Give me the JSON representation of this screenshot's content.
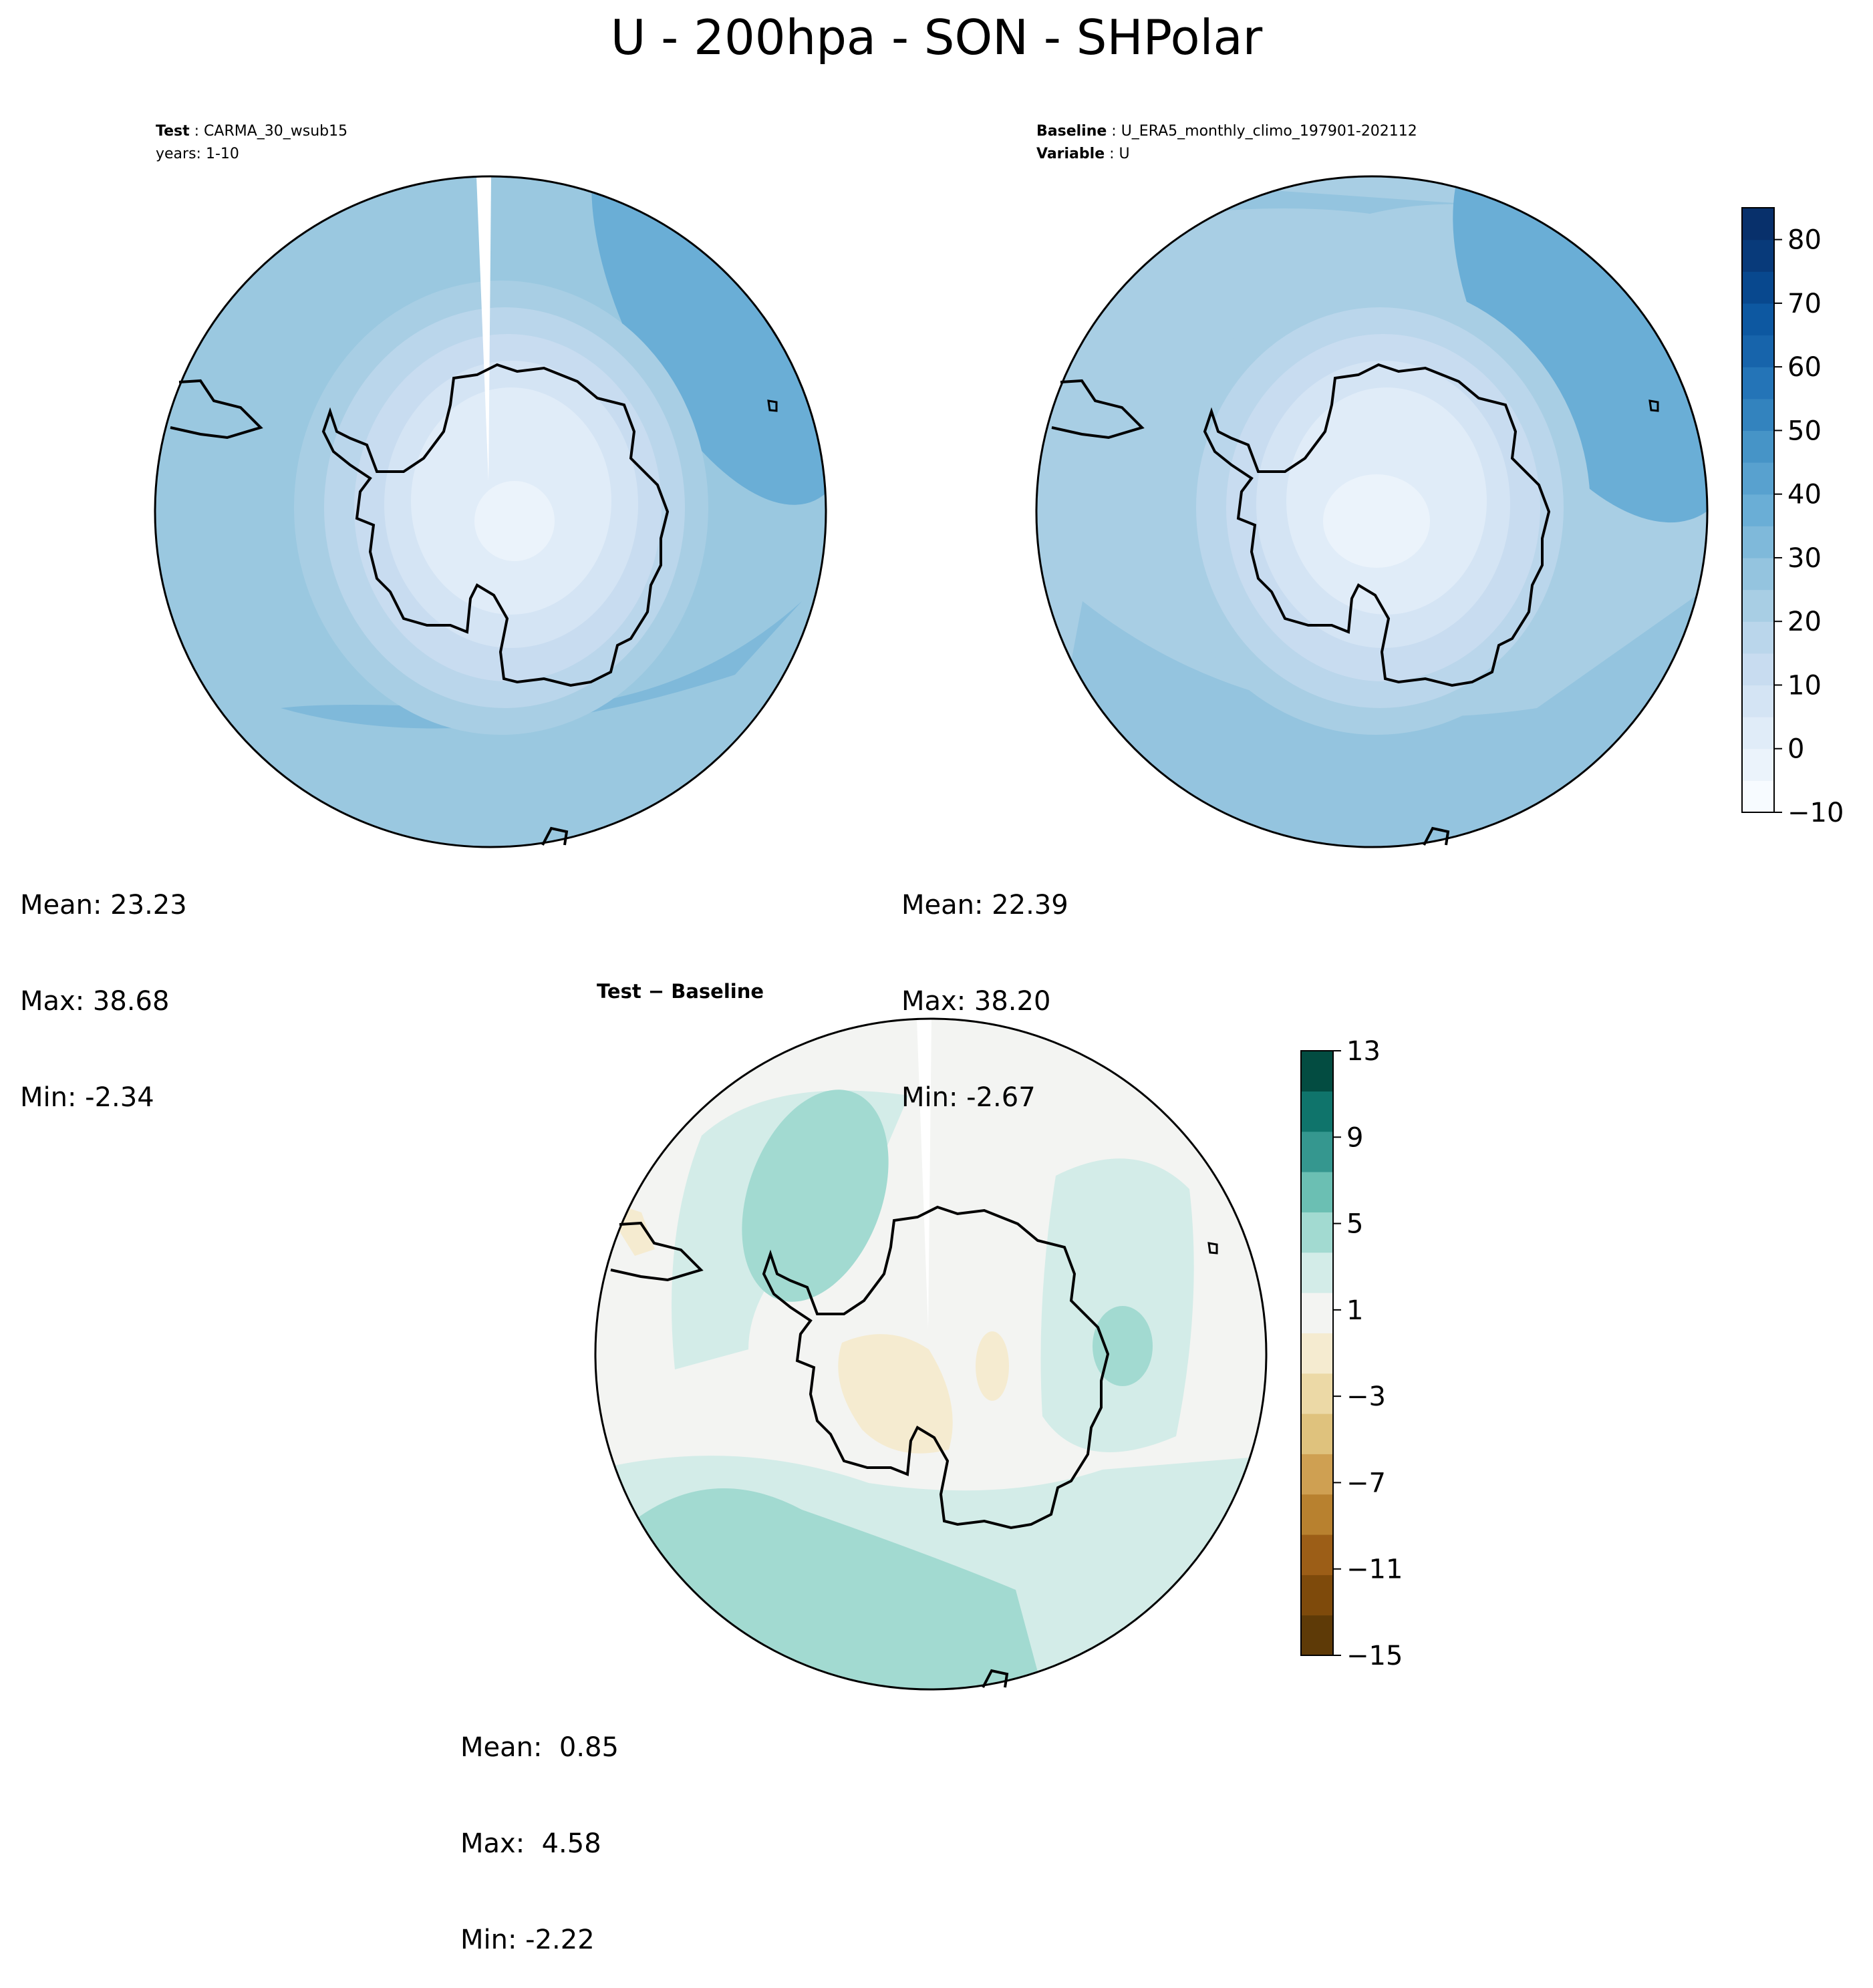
{
  "title": "U - 200hpa - SON - SHPolar",
  "panels": {
    "test": {
      "title_key": "Test",
      "title_value": "CARMA_30_wsub15",
      "subtitle": "years: 1-10",
      "stats": {
        "mean": "Mean: 23.23",
        "max": "Max: 38.68",
        "min": "Min: -2.34"
      }
    },
    "baseline": {
      "title_key": "Baseline",
      "title_value": "U_ERA5_monthly_climo_197901-202112",
      "subtitle_key": "Variable",
      "subtitle_value": "U",
      "stats": {
        "mean": "Mean: 22.39",
        "max": "Max: 38.20",
        "min": "Min: -2.67"
      }
    },
    "diff": {
      "title": "Test − Baseline",
      "stats": {
        "mean": "Mean:  0.85",
        "max": "Max:  4.58",
        "min": "Min: -2.22"
      }
    }
  },
  "chart_data": [
    {
      "type": "heatmap",
      "name": "Test",
      "projection": "south-polar-stereographic",
      "value_range": [
        -2.34,
        38.68
      ],
      "colormap": "Blues",
      "levels": [
        -10,
        -5,
        0,
        5,
        10,
        15,
        20,
        25,
        30,
        35,
        40,
        45,
        50,
        55,
        60,
        65,
        70,
        75,
        80,
        85
      ]
    },
    {
      "type": "heatmap",
      "name": "Baseline",
      "projection": "south-polar-stereographic",
      "value_range": [
        -2.67,
        38.2
      ],
      "colormap": "Blues",
      "levels": [
        -10,
        -5,
        0,
        5,
        10,
        15,
        20,
        25,
        30,
        35,
        40,
        45,
        50,
        55,
        60,
        65,
        70,
        75,
        80,
        85
      ]
    },
    {
      "type": "heatmap",
      "name": "Test − Baseline",
      "projection": "south-polar-stereographic",
      "value_range": [
        -2.22,
        4.58
      ],
      "colormap": "BrBG",
      "levels": [
        -15,
        -13,
        -11,
        -9,
        -7,
        -5,
        -3,
        -1,
        1,
        3,
        5,
        7,
        9,
        11,
        13
      ]
    }
  ],
  "colorbars": {
    "main": {
      "ticks": [
        "80",
        "70",
        "60",
        "50",
        "40",
        "30",
        "20",
        "10",
        "0",
        "−10"
      ],
      "tick_values": [
        80,
        70,
        60,
        50,
        40,
        30,
        20,
        10,
        0,
        -10
      ],
      "min": -10,
      "max": 85,
      "colors": [
        "#f7fbff",
        "#ebf3fb",
        "#e0ecf8",
        "#d4e4f4",
        "#c8dcf0",
        "#bad6eb",
        "#a8cee4",
        "#94c4df",
        "#7fb9da",
        "#6aaed6",
        "#58a1cf",
        "#4694c7",
        "#3383be",
        "#2474b7",
        "#1764ab",
        "#0d58a1",
        "#08488e",
        "#083a7a",
        "#08306b"
      ]
    },
    "diff": {
      "ticks": [
        "13",
        "9",
        "5",
        "1",
        "−3",
        "−7",
        "−11",
        "−15"
      ],
      "tick_values": [
        13,
        9,
        5,
        1,
        -3,
        -7,
        -11,
        -15
      ],
      "min": -15,
      "max": 13,
      "colors": [
        "#5e3a07",
        "#7e4a0b",
        "#9c5e17",
        "#b8812f",
        "#cfa052",
        "#dfc27d",
        "#ecd9a6",
        "#f5ebd0",
        "#f3f4f2",
        "#d3ece8",
        "#a2dad1",
        "#6bbfb3",
        "#35978f",
        "#0f746b",
        "#034c41"
      ]
    }
  }
}
